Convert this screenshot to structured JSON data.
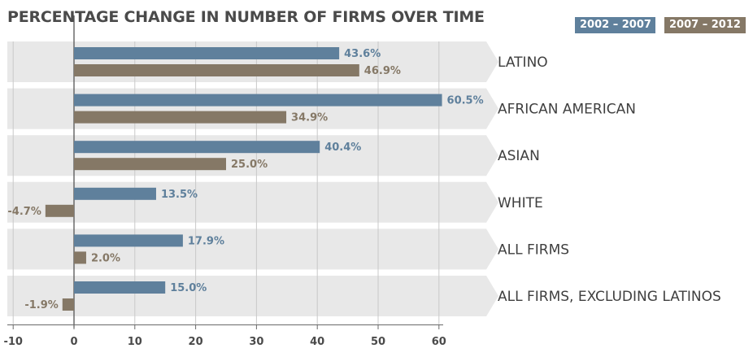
{
  "chart_data": {
    "type": "bar",
    "orientation": "horizontal",
    "title": "PERCENTAGE CHANGE IN NUMBER OF FIRMS OVER TIME",
    "categories": [
      "LATINO",
      "AFRICAN AMERICAN",
      "ASIAN",
      "WHITE",
      "ALL FIRMS",
      "ALL FIRMS, EXCLUDING LATINOS"
    ],
    "series": [
      {
        "name": "2002 – 2007",
        "values": [
          43.6,
          60.5,
          40.4,
          13.5,
          17.9,
          15.0
        ],
        "labels": [
          "43.6%",
          "60.5%",
          "40.4%",
          "13.5%",
          "17.9%",
          "15.0%"
        ],
        "color": "#5f809c"
      },
      {
        "name": "2007 – 2012",
        "values": [
          46.9,
          34.9,
          25.0,
          -4.7,
          2.0,
          -1.9
        ],
        "labels": [
          "46.9%",
          "34.9%",
          "25.0%",
          "-4.7%",
          "2.0%",
          "-1.9%"
        ],
        "color": "#857866"
      }
    ],
    "xlim": [
      -11,
      62
    ],
    "xticks": [
      -10,
      0,
      10,
      20,
      30,
      40,
      50,
      60
    ],
    "xtick_labels": [
      "-10",
      "0",
      "10",
      "20",
      "30",
      "40",
      "50",
      "60"
    ],
    "grid": true,
    "legend_position": "top-right",
    "row_band_color": "#e8e8e8",
    "gridline_color": "#c9c9c9"
  }
}
